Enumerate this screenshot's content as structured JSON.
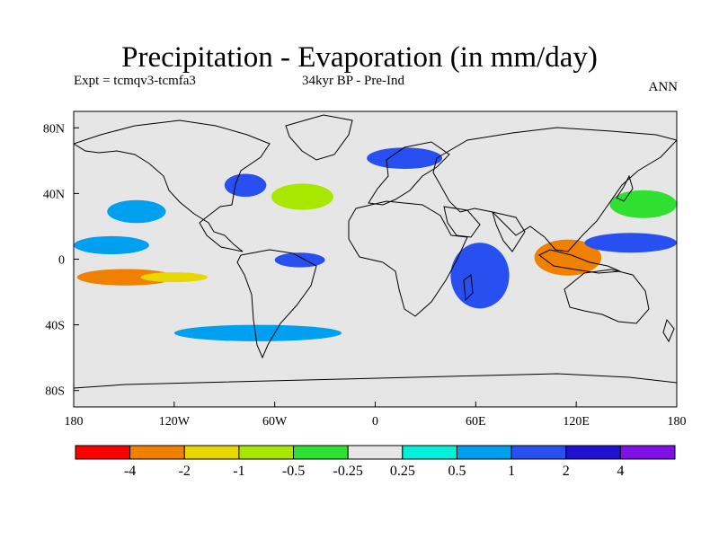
{
  "title": "Precipitation - Evaporation (in mm/day)",
  "experiment_label": "Expt = tcmqv3-tcmfa3",
  "period_label": "34kyr BP - Pre-Ind",
  "season_label": "ANN",
  "chart_data": {
    "type": "heatmap",
    "projection": "cylindrical-equidistant",
    "xlim": [
      -180,
      180
    ],
    "ylim": [
      -90,
      90
    ],
    "x_ticks": [
      {
        "value": -180,
        "label": "180"
      },
      {
        "value": -120,
        "label": "120W"
      },
      {
        "value": -60,
        "label": "60W"
      },
      {
        "value": 0,
        "label": "0"
      },
      {
        "value": 60,
        "label": "60E"
      },
      {
        "value": 120,
        "label": "120E"
      },
      {
        "value": 180,
        "label": "180"
      }
    ],
    "y_ticks": [
      {
        "value": 80,
        "label": "80N"
      },
      {
        "value": 40,
        "label": "40N"
      },
      {
        "value": 0,
        "label": "0"
      },
      {
        "value": -40,
        "label": "40S"
      },
      {
        "value": -80,
        "label": "80S"
      }
    ],
    "background_color": "#e6e6e6",
    "colorbar": {
      "levels": [
        "-4",
        "-2",
        "-1",
        "-0.5",
        "-0.25",
        "0.25",
        "0.5",
        "1",
        "2",
        "4"
      ],
      "colors": [
        "#ff0000",
        "#f08000",
        "#e8d800",
        "#a8e800",
        "#30e030",
        "#e6e6e6",
        "#00f0d8",
        "#00a0f0",
        "#2850f0",
        "#2010d0",
        "#8010e8"
      ]
    },
    "regions": [
      {
        "lon_range": [
          -180,
          -135
        ],
        "lat_range": [
          3,
          14
        ],
        "level": "0.5 to 1"
      },
      {
        "lon_range": [
          -178,
          -120
        ],
        "lat_range": [
          -16,
          -6
        ],
        "level": "-4 to -1"
      },
      {
        "lon_range": [
          -140,
          -100
        ],
        "lat_range": [
          -14,
          -8
        ],
        "level": "-2 to -1"
      },
      {
        "lon_range": [
          -160,
          -125
        ],
        "lat_range": [
          22,
          36
        ],
        "level": "0.5 to 1"
      },
      {
        "lon_range": [
          -90,
          -65
        ],
        "lat_range": [
          38,
          52
        ],
        "level": "1 to 2"
      },
      {
        "lon_range": [
          -62,
          -25
        ],
        "lat_range": [
          30,
          46
        ],
        "level": "-1 to -0.5"
      },
      {
        "lon_range": [
          -60,
          -30
        ],
        "lat_range": [
          -5,
          4
        ],
        "level": "1 to 2"
      },
      {
        "lon_range": [
          -5,
          40
        ],
        "lat_range": [
          55,
          68
        ],
        "level": "1 to 2"
      },
      {
        "lon_range": [
          45,
          80
        ],
        "lat_range": [
          -30,
          10
        ],
        "level": "1 to 2"
      },
      {
        "lon_range": [
          95,
          135
        ],
        "lat_range": [
          -10,
          12
        ],
        "level": "-4 to -1"
      },
      {
        "lon_range": [
          125,
          180
        ],
        "lat_range": [
          4,
          16
        ],
        "level": "1 to 4"
      },
      {
        "lon_range": [
          140,
          180
        ],
        "lat_range": [
          25,
          42
        ],
        "level": "-0.5 to -0.25"
      },
      {
        "lon_range": [
          -120,
          -20
        ],
        "lat_range": [
          -50,
          -40
        ],
        "level": "0.5 to 1"
      }
    ]
  }
}
